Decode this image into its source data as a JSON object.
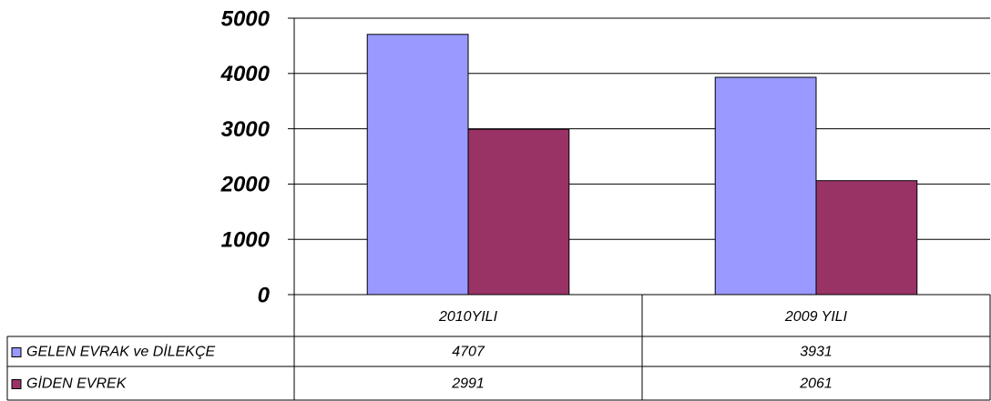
{
  "chart_data": {
    "type": "bar",
    "categories": [
      "2010YILI",
      "2009 YILI"
    ],
    "series": [
      {
        "name": "GELEN EVRAK ve DİLEKÇE",
        "color": "#9999ff",
        "values": [
          4707,
          3931
        ]
      },
      {
        "name": "GİDEN EVREK",
        "color": "#993366",
        "values": [
          2991,
          2061
        ]
      }
    ],
    "ylim": [
      0,
      5000
    ],
    "yticks": [
      0,
      1000,
      2000,
      3000,
      4000,
      5000
    ],
    "grid": true
  }
}
